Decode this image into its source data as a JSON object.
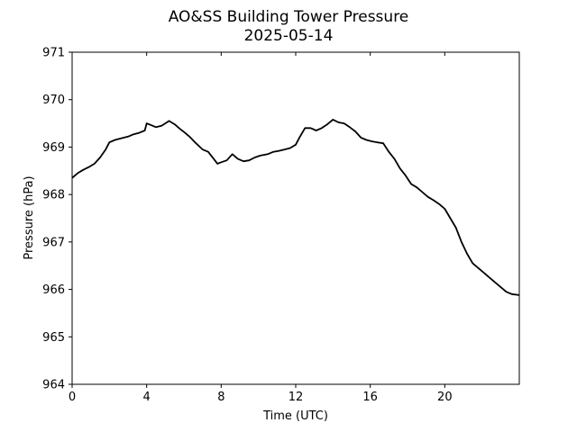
{
  "chart_data": {
    "type": "line",
    "title": "AO&SS Building Tower Pressure",
    "subtitle": "2025-05-14",
    "xlabel": "Time (UTC)",
    "ylabel": "Pressure (hPa)",
    "xlim": [
      0,
      24
    ],
    "ylim": [
      964,
      971
    ],
    "xticks": [
      0,
      4,
      8,
      12,
      16,
      20
    ],
    "yticks": [
      964,
      965,
      966,
      967,
      968,
      969,
      970,
      971
    ],
    "grid": false,
    "line_color": "#000000",
    "series": [
      {
        "x": [
          0.0,
          0.3,
          0.6,
          0.9,
          1.2,
          1.5,
          1.8,
          2.0,
          2.3,
          2.6,
          3.0,
          3.3,
          3.6,
          3.9,
          4.0,
          4.2,
          4.5,
          4.8,
          5.0,
          5.2,
          5.5,
          5.8,
          6.0,
          6.3,
          6.6,
          7.0,
          7.3,
          7.6,
          7.8,
          8.0,
          8.3,
          8.6,
          8.9,
          9.2,
          9.5,
          9.8,
          10.1,
          10.5,
          10.8,
          11.1,
          11.4,
          11.7,
          12.0,
          12.2,
          12.5,
          12.8,
          13.1,
          13.4,
          13.7,
          14.0,
          14.3,
          14.6,
          14.9,
          15.2,
          15.5,
          15.8,
          16.1,
          16.4,
          16.7,
          17.0,
          17.3,
          17.6,
          17.9,
          18.2,
          18.5,
          18.8,
          19.1,
          19.4,
          19.7,
          20.0,
          20.3,
          20.6,
          20.9,
          21.2,
          21.5,
          21.8,
          22.1,
          22.4,
          22.7,
          23.0,
          23.3,
          23.6,
          24.0
        ],
        "y": [
          968.35,
          968.45,
          968.52,
          968.58,
          968.65,
          968.78,
          968.95,
          969.1,
          969.15,
          969.18,
          969.22,
          969.27,
          969.3,
          969.35,
          969.5,
          969.47,
          969.42,
          969.45,
          969.5,
          969.55,
          969.48,
          969.38,
          969.32,
          969.22,
          969.1,
          968.95,
          968.9,
          968.75,
          968.65,
          968.68,
          968.72,
          968.85,
          968.75,
          968.7,
          968.72,
          968.78,
          968.82,
          968.85,
          968.9,
          968.92,
          968.95,
          968.98,
          969.05,
          969.2,
          969.4,
          969.4,
          969.35,
          969.4,
          969.48,
          969.58,
          969.52,
          969.5,
          969.42,
          969.33,
          969.2,
          969.15,
          969.12,
          969.1,
          969.08,
          968.9,
          968.75,
          968.55,
          968.4,
          968.22,
          968.15,
          968.05,
          967.95,
          967.88,
          967.8,
          967.7,
          967.5,
          967.3,
          967.0,
          966.75,
          966.55,
          966.45,
          966.35,
          966.25,
          966.15,
          966.05,
          965.95,
          965.9,
          965.88
        ]
      }
    ]
  }
}
